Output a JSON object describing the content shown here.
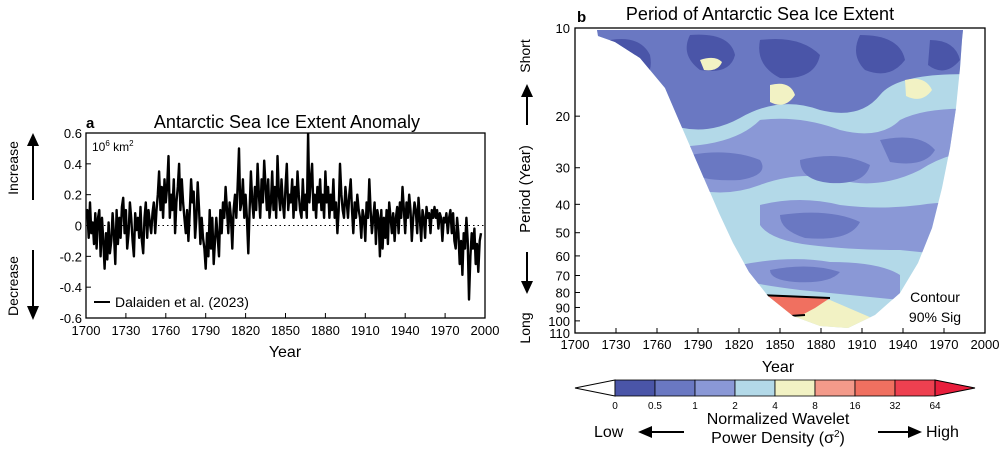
{
  "chart_data": [
    {
      "type": "line",
      "panel_label": "a",
      "title": "Antarctic Sea Ice Extent Anomaly",
      "unit_label": "10⁶ km²",
      "xlabel": "Year",
      "ylabel": "",
      "xlim": [
        1700,
        2000
      ],
      "ylim": [
        -0.6,
        0.6
      ],
      "x_ticks": [
        "1700",
        "1730",
        "1760",
        "1790",
        "1820",
        "1850",
        "1880",
        "1910",
        "1940",
        "1970",
        "2000"
      ],
      "y_ticks": [
        "0.6",
        "0.4",
        "0.2",
        "0",
        "-0.2",
        "-0.4",
        "-0.6"
      ],
      "side_labels": {
        "increase": "Increase",
        "decrease": "Decrease"
      },
      "zero_line": "dotted",
      "legend": {
        "placement": "bottom-left"
      },
      "series": [
        {
          "name": "Dalaiden et al. (2023)",
          "color": "#000000",
          "x_start": 1700,
          "x_step": 1,
          "values": [
            0.05,
            0.1,
            -0.08,
            0.15,
            -0.05,
            0.02,
            -0.12,
            0.08,
            -0.15,
            0.05,
            0.1,
            -0.2,
            0.05,
            -0.1,
            -0.28,
            -0.05,
            -0.22,
            0.02,
            -0.18,
            -0.1,
            0.08,
            -0.05,
            -0.25,
            0.1,
            -0.12,
            0.05,
            -0.08,
            0.12,
            0.18,
            -0.05,
            0.1,
            -0.15,
            -0.05,
            0.15,
            0.05,
            -0.1,
            -0.2,
            0.08,
            -0.03,
            0.05,
            -0.08,
            0.12,
            -0.1,
            -0.18,
            0.05,
            0.15,
            -0.08,
            0.1,
            0.02,
            -0.05,
            0.08,
            0.15,
            -0.05,
            0.1,
            0.2,
            0.35,
            0.1,
            0.25,
            0.05,
            0.3,
            0.15,
            0.25,
            0.45,
            0.05,
            0.2,
            0.1,
            0.3,
            -0.05,
            0.15,
            0.25,
            0.4,
            0.1,
            0.3,
            0.15,
            0.05,
            -0.05,
            0.1,
            -0.1,
            0.08,
            0.3,
            0.15,
            0.22,
            -0.08,
            0.05,
            0.28,
            0.1,
            -0.12,
            0.05,
            -0.08,
            -0.15,
            -0.28,
            -0.05,
            -0.2,
            0.1,
            -0.15,
            0.05,
            -0.25,
            -0.1,
            0.05,
            -0.08,
            -0.2,
            0.1,
            -0.05,
            0.15,
            0.05,
            0.25,
            0.1,
            -0.05,
            0.15,
            0.05,
            -0.15,
            0.1,
            0.2,
            0.05,
            0.25,
            0.5,
            0.1,
            0.15,
            0.3,
            0.05,
            0.2,
            0.05,
            -0.18,
            0.1,
            0.35,
            0.15,
            0.05,
            0.25,
            0.1,
            0.4,
            0.2,
            0.05,
            0.3,
            0.15,
            0.42,
            0.25,
            0.1,
            0.3,
            0.05,
            0.15,
            0.35,
            0.1,
            0.25,
            0.05,
            0.45,
            0.2,
            0.1,
            0.3,
            0.15,
            0.05,
            0.25,
            0.4,
            0.1,
            0.2,
            0.15,
            0.3,
            0.05,
            0.25,
            0.1,
            0.35,
            0.2,
            0.1,
            0.05,
            0.3,
            0.1,
            0.2,
            0.05,
            0.6,
            0.15,
            0.3,
            0.4,
            0.1,
            0.2,
            0.05,
            0.25,
            0.15,
            0.3,
            0.1,
            0.2,
            0.05,
            0.35,
            0.15,
            0.25,
            0.05,
            0.2,
            0.1,
            0.3,
            0.05,
            0.15,
            -0.05,
            0.1,
            0.4,
            0.2,
            0.1,
            0.05,
            0.25,
            0.15,
            0.05,
            0.2,
            0.3,
            0.1,
            -0.05,
            0.15,
            0.05,
            0.2,
            0.1,
            0.05,
            -0.08,
            0.1,
            0.05,
            -0.1,
            0.15,
            0.05,
            0.3,
            0.1,
            -0.05,
            0.05,
            0.15,
            -0.12,
            0.1,
            0.05,
            -0.2,
            0.1,
            -0.15,
            0.05,
            -0.08,
            0.1,
            -0.12,
            0.15,
            0.05,
            -0.05,
            0.08,
            -0.1,
            0.05,
            0.12,
            -0.05,
            0.15,
            0.05,
            0.25,
            0.1,
            -0.05,
            0.15,
            0.05,
            0.2,
            0.1,
            -0.1,
            0.05,
            0.15,
            0.1,
            -0.05,
            0.18,
            0.05,
            -0.1,
            0.1,
            0.05,
            -0.08,
            0.12,
            0.05,
            0.08,
            -0.05,
            0.1,
            0.05,
            0.12,
            0.05,
            0.1,
            -0.02,
            0.08,
            0.05,
            -0.1,
            0.05,
            0.02,
            0.08,
            -0.05,
            0.05,
            0.1,
            -0.05,
            0.08,
            -0.1,
            -0.15,
            0.05,
            -0.05,
            -0.25,
            -0.1,
            -0.32,
            -0.05,
            -0.15,
            0.05,
            -0.1,
            -0.48,
            -0.2,
            -0.05,
            -0.15,
            -0.02,
            -0.25,
            -0.12,
            -0.3,
            -0.1,
            -0.05
          ]
        }
      ]
    },
    {
      "type": "heatmap",
      "panel_label": "b",
      "title": "Period of Antarctic Sea Ice Extent",
      "xlabel": "Year",
      "ylabel": "Period (Year)",
      "xlim": [
        1700,
        2000
      ],
      "y_scale": "log",
      "ylim": [
        10,
        110
      ],
      "x_ticks": [
        "1700",
        "1730",
        "1760",
        "1790",
        "1820",
        "1850",
        "1880",
        "1910",
        "1940",
        "1970",
        "2000"
      ],
      "y_ticks": [
        "10",
        "20",
        "30",
        "40",
        "50",
        "60",
        "70",
        "80",
        "90",
        "100",
        "110"
      ],
      "side_labels": {
        "short": "Short",
        "long": "Long"
      },
      "annotation": {
        "line1": "Contour",
        "line2": "90% Sig"
      },
      "colorbar": {
        "title_line1": "Normalized Wavelet",
        "title_line2": "Power Density (σ²)",
        "ticks": [
          "0",
          "0.5",
          "1",
          "2",
          "4",
          "8",
          "16",
          "32",
          "64"
        ],
        "low_label": "Low",
        "high_label": "High",
        "colors": [
          "#ffffff",
          "#4a55a8",
          "#6a78c2",
          "#8a98d6",
          "#b3d9e8",
          "#f2f2c4",
          "#f39a8a",
          "#f07060",
          "#ee4050",
          "#e81e3c"
        ]
      }
    }
  ]
}
